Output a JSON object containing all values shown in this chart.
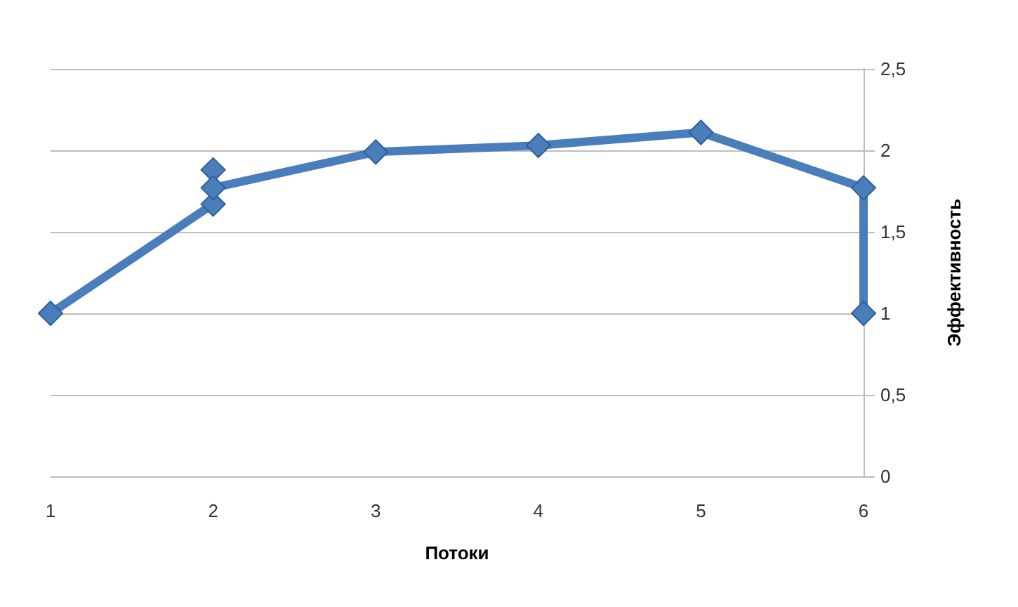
{
  "chart_data": {
    "type": "line",
    "xlabel": "Потоки",
    "ylabel": "Эффективность",
    "x": [
      1,
      2,
      2,
      2,
      3,
      4,
      5,
      6,
      6
    ],
    "series": [
      {
        "color": "#4a7ebb",
        "values": [
          1,
          1.67,
          1.88,
          1.77,
          1.99,
          2.03,
          2.11,
          1.77,
          1.0
        ]
      }
    ],
    "xlim": [
      1,
      6
    ],
    "xticks": [
      1,
      2,
      3,
      4,
      5,
      6
    ],
    "ylim": [
      0,
      2.5
    ],
    "yticks": [
      0,
      {
        "value": 0.5,
        "label": "0,5"
      },
      1,
      {
        "value": 1.5,
        "label": "1,5"
      },
      2,
      {
        "value": 2.5,
        "label": "2,5"
      }
    ],
    "grid": "y",
    "marker": "diamond",
    "line_style": "solid"
  }
}
